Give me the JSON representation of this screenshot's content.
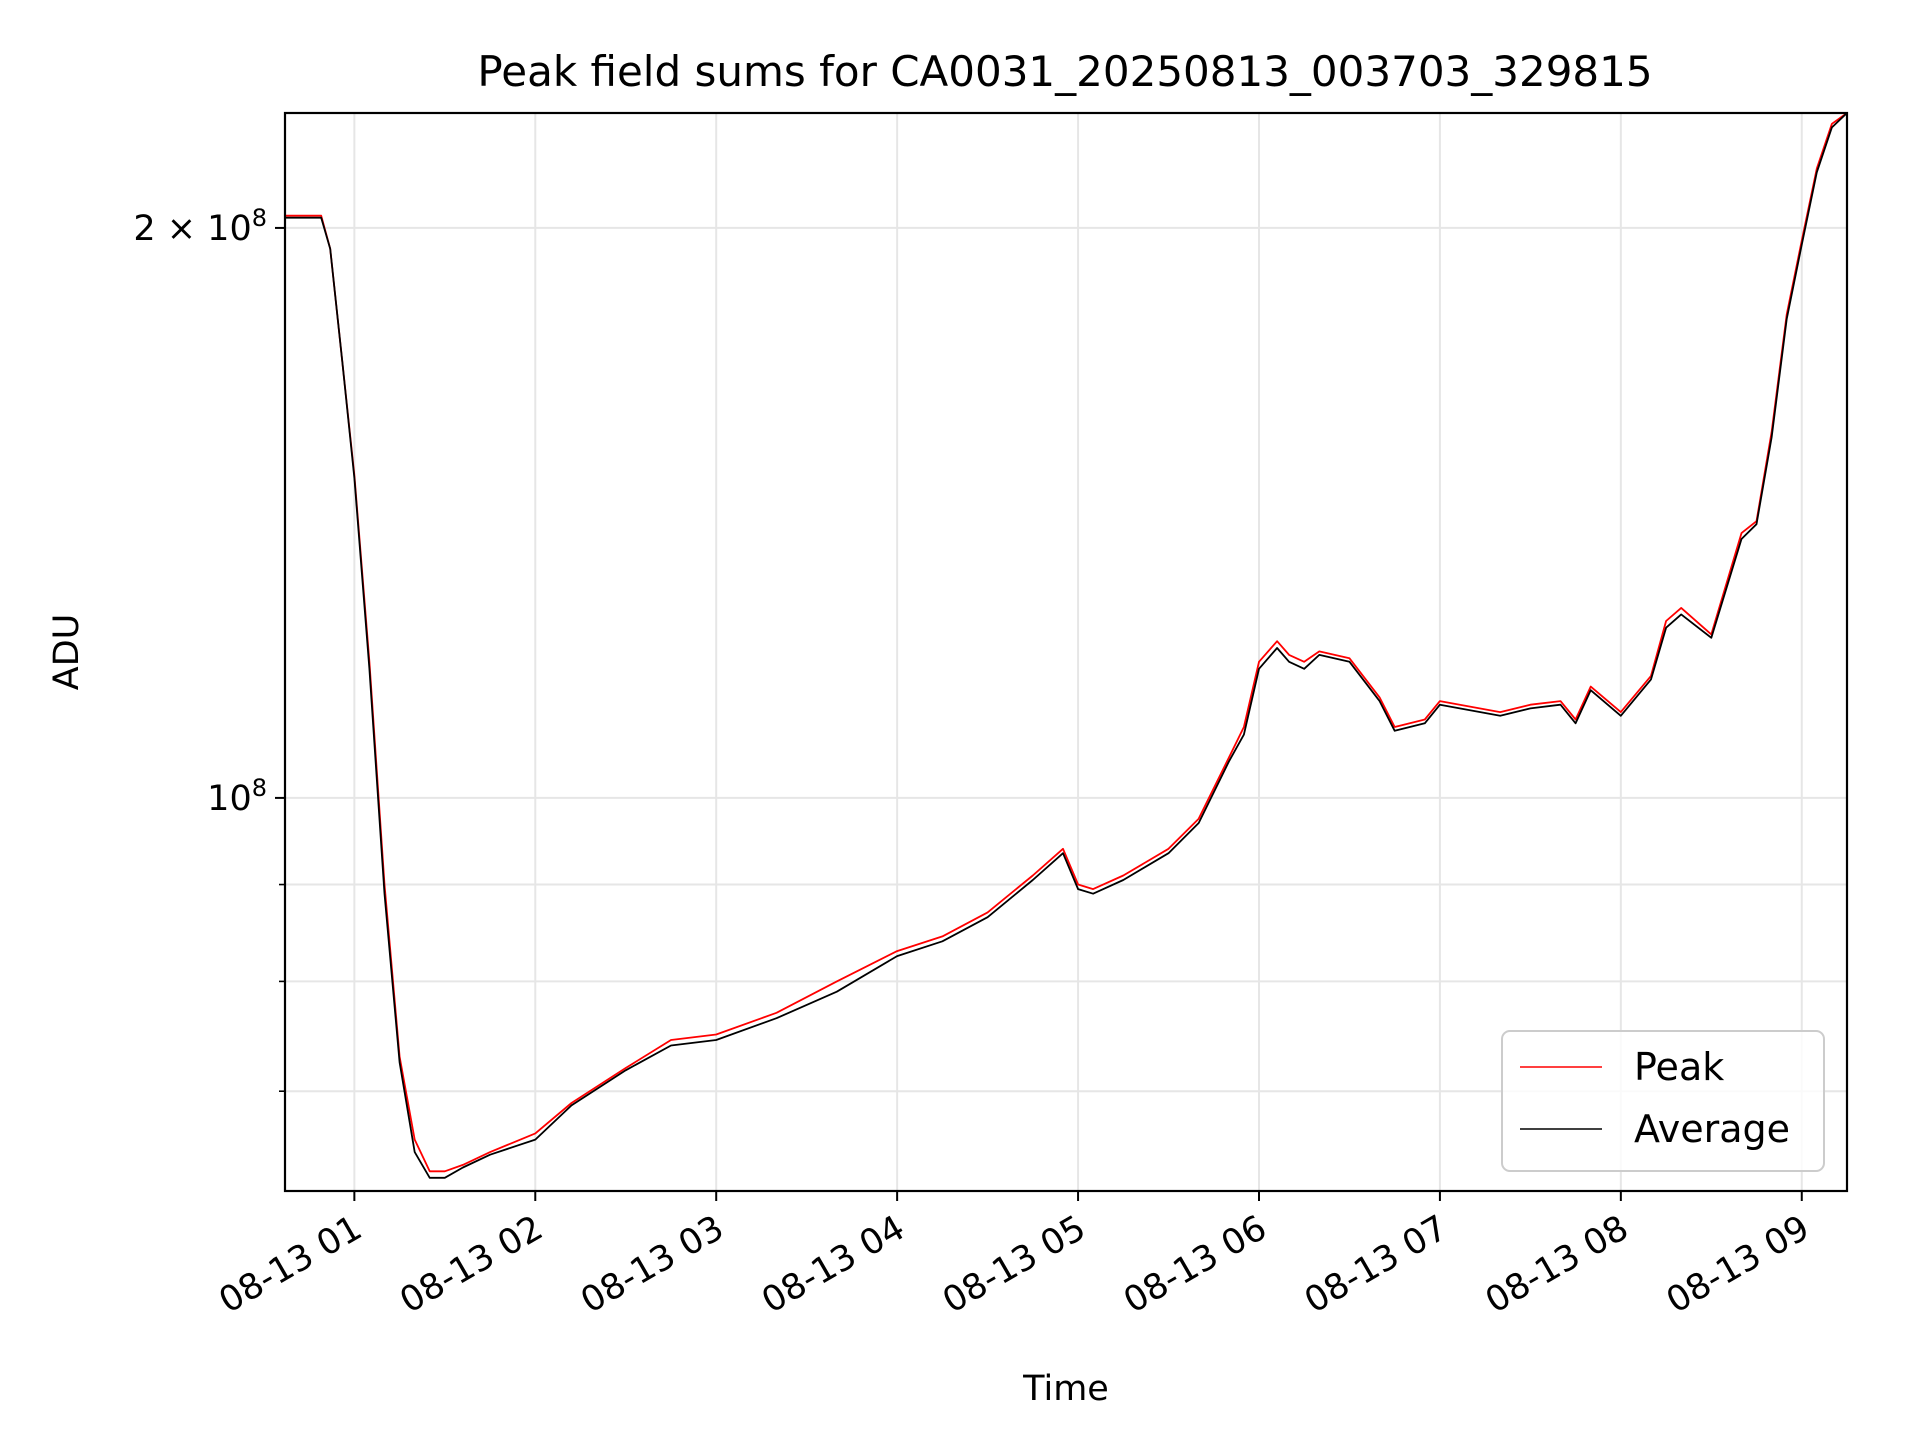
{
  "chart_data": {
    "type": "line",
    "title": "Peak field sums for CA0031_20250813_003703_329815",
    "xlabel": "Time",
    "ylabel": "ADU",
    "x_tick_labels": [
      "08-13 01",
      "08-13 02",
      "08-13 03",
      "08-13 04",
      "08-13 05",
      "08-13 06",
      "08-13 07",
      "08-13 08",
      "08-13 09"
    ],
    "x_ticks": [
      "2025-08-13 01:00",
      "2025-08-13 02:00",
      "2025-08-13 03:00",
      "2025-08-13 04:00",
      "2025-08-13 05:00",
      "2025-08-13 06:00",
      "2025-08-13 07:00",
      "2025-08-13 08:00",
      "2025-08-13 09:00"
    ],
    "xlim": [
      "2025-08-13 00:37",
      "2025-08-13 09:15"
    ],
    "y_scale": "log",
    "ylim": [
      62000000,
      230000000
    ],
    "y_major_ticks": [
      {
        "value": 100000000,
        "label": "10⁸",
        "base": "10",
        "exp": "8"
      },
      {
        "value": 200000000,
        "label": "2 × 10⁸",
        "base": "2 × 10",
        "exp": "8"
      }
    ],
    "y_minor_ticks": [
      70000000,
      80000000,
      90000000
    ],
    "grid": true,
    "legend": {
      "position": "lower-right",
      "entries": [
        {
          "name": "Peak",
          "color": "#ff0000"
        },
        {
          "name": "Average",
          "color": "#000000"
        }
      ]
    },
    "series": [
      {
        "name": "Peak",
        "color": "#ff0000",
        "x": [
          "2025-08-13 00:37",
          "2025-08-13 00:49",
          "2025-08-13 00:52",
          "2025-08-13 00:56",
          "2025-08-13 01:00",
          "2025-08-13 01:05",
          "2025-08-13 01:10",
          "2025-08-13 01:15",
          "2025-08-13 01:20",
          "2025-08-13 01:25",
          "2025-08-13 01:30",
          "2025-08-13 01:36",
          "2025-08-13 01:45",
          "2025-08-13 02:00",
          "2025-08-13 02:12",
          "2025-08-13 02:30",
          "2025-08-13 02:45",
          "2025-08-13 03:00",
          "2025-08-13 03:20",
          "2025-08-13 03:40",
          "2025-08-13 04:00",
          "2025-08-13 04:15",
          "2025-08-13 04:30",
          "2025-08-13 04:45",
          "2025-08-13 04:55",
          "2025-08-13 05:00",
          "2025-08-13 05:05",
          "2025-08-13 05:15",
          "2025-08-13 05:30",
          "2025-08-13 05:40",
          "2025-08-13 05:50",
          "2025-08-13 05:55",
          "2025-08-13 06:00",
          "2025-08-13 06:06",
          "2025-08-13 06:10",
          "2025-08-13 06:15",
          "2025-08-13 06:20",
          "2025-08-13 06:30",
          "2025-08-13 06:40",
          "2025-08-13 06:45",
          "2025-08-13 06:55",
          "2025-08-13 07:00",
          "2025-08-13 07:20",
          "2025-08-13 07:30",
          "2025-08-13 07:40",
          "2025-08-13 07:45",
          "2025-08-13 07:50",
          "2025-08-13 08:00",
          "2025-08-13 08:10",
          "2025-08-13 08:15",
          "2025-08-13 08:20",
          "2025-08-13 08:30",
          "2025-08-13 08:40",
          "2025-08-13 08:45",
          "2025-08-13 08:50",
          "2025-08-13 08:55",
          "2025-08-13 09:00",
          "2025-08-13 09:05",
          "2025-08-13 09:10",
          "2025-08-13 09:15"
        ],
        "values": [
          203000000,
          203000000,
          195000000,
          170000000,
          148000000,
          118000000,
          90000000,
          73000000,
          66000000,
          63500000,
          63500000,
          64000000,
          65000000,
          66500000,
          69000000,
          72000000,
          74500000,
          75000000,
          77000000,
          80000000,
          83000000,
          84500000,
          87000000,
          91000000,
          94000000,
          90000000,
          89500000,
          91000000,
          94000000,
          97500000,
          105000000,
          109000000,
          118000000,
          121000000,
          119000000,
          118000000,
          119500000,
          118500000,
          113000000,
          109000000,
          110000000,
          112500000,
          111000000,
          112000000,
          112500000,
          110000000,
          114500000,
          111000000,
          116000000,
          124000000,
          126000000,
          122000000,
          138000000,
          140000000,
          156000000,
          180000000,
          197000000,
          215000000,
          227000000,
          235000000
        ]
      },
      {
        "name": "Average",
        "color": "#000000",
        "x": [
          "2025-08-13 00:37",
          "2025-08-13 00:49",
          "2025-08-13 00:52",
          "2025-08-13 00:56",
          "2025-08-13 01:00",
          "2025-08-13 01:05",
          "2025-08-13 01:10",
          "2025-08-13 01:15",
          "2025-08-13 01:20",
          "2025-08-13 01:25",
          "2025-08-13 01:30",
          "2025-08-13 01:36",
          "2025-08-13 01:45",
          "2025-08-13 02:00",
          "2025-08-13 02:12",
          "2025-08-13 02:30",
          "2025-08-13 02:45",
          "2025-08-13 03:00",
          "2025-08-13 03:20",
          "2025-08-13 03:40",
          "2025-08-13 04:00",
          "2025-08-13 04:15",
          "2025-08-13 04:30",
          "2025-08-13 04:45",
          "2025-08-13 04:55",
          "2025-08-13 05:00",
          "2025-08-13 05:05",
          "2025-08-13 05:15",
          "2025-08-13 05:30",
          "2025-08-13 05:40",
          "2025-08-13 05:50",
          "2025-08-13 05:55",
          "2025-08-13 06:00",
          "2025-08-13 06:06",
          "2025-08-13 06:10",
          "2025-08-13 06:15",
          "2025-08-13 06:20",
          "2025-08-13 06:30",
          "2025-08-13 06:40",
          "2025-08-13 06:45",
          "2025-08-13 06:55",
          "2025-08-13 07:00",
          "2025-08-13 07:20",
          "2025-08-13 07:30",
          "2025-08-13 07:40",
          "2025-08-13 07:45",
          "2025-08-13 07:50",
          "2025-08-13 08:00",
          "2025-08-13 08:10",
          "2025-08-13 08:15",
          "2025-08-13 08:20",
          "2025-08-13 08:30",
          "2025-08-13 08:40",
          "2025-08-13 08:45",
          "2025-08-13 08:50",
          "2025-08-13 08:55",
          "2025-08-13 09:00",
          "2025-08-13 09:05",
          "2025-08-13 09:10",
          "2025-08-13 09:15"
        ],
        "values": [
          202500000,
          202500000,
          195000000,
          170000000,
          147500000,
          117000000,
          89000000,
          72500000,
          65000000,
          63000000,
          63000000,
          63800000,
          64800000,
          66000000,
          68800000,
          71800000,
          74000000,
          74500000,
          76500000,
          79000000,
          82500000,
          84000000,
          86500000,
          90500000,
          93500000,
          89500000,
          89000000,
          90500000,
          93500000,
          97000000,
          104500000,
          108000000,
          117000000,
          120000000,
          118000000,
          117000000,
          119000000,
          118000000,
          112500000,
          108500000,
          109500000,
          112000000,
          110500000,
          111500000,
          112000000,
          109500000,
          114000000,
          110500000,
          115500000,
          123000000,
          125000000,
          121500000,
          137000000,
          139500000,
          155000000,
          179000000,
          196000000,
          214000000,
          226000000,
          234000000
        ]
      }
    ]
  }
}
